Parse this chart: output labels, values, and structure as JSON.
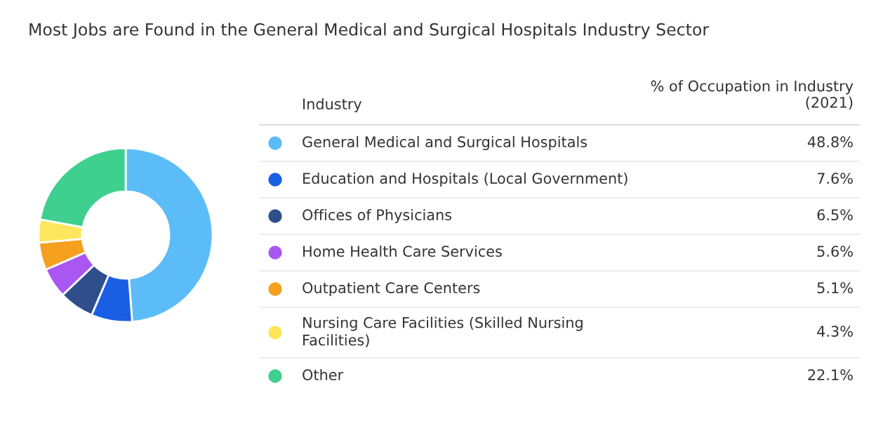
{
  "chart_data": {
    "type": "donut",
    "title": "Most Jobs are Found in the General Medical and Surgical Hospitals Industry Sector",
    "legend_title": "Industry",
    "annotations": [
      "% of Occupation in Industry\n(2021)"
    ],
    "categories": [
      "General Medical and Surgical Hospitals",
      "Education and Hospitals (Local Government)",
      "Offices of Physicians",
      "Home Health Care Services",
      "Outpatient Care Centers",
      "Nursing Care Facilities (Skilled Nursing\nFacilities)",
      "Other"
    ],
    "values": [
      48.8,
      7.6,
      6.5,
      5.6,
      5.1,
      4.3,
      22.1
    ],
    "value_labels": [
      "48.8%",
      "7.6%",
      "6.5%",
      "5.6%",
      "5.1%",
      "4.3%",
      "22.1%"
    ],
    "colors": [
      "#5cbcf8",
      "#1a5fe3",
      "#2e4f8c",
      "#a957f0",
      "#f5a01f",
      "#fde65c",
      "#3fcf8e"
    ],
    "legend": "right"
  }
}
